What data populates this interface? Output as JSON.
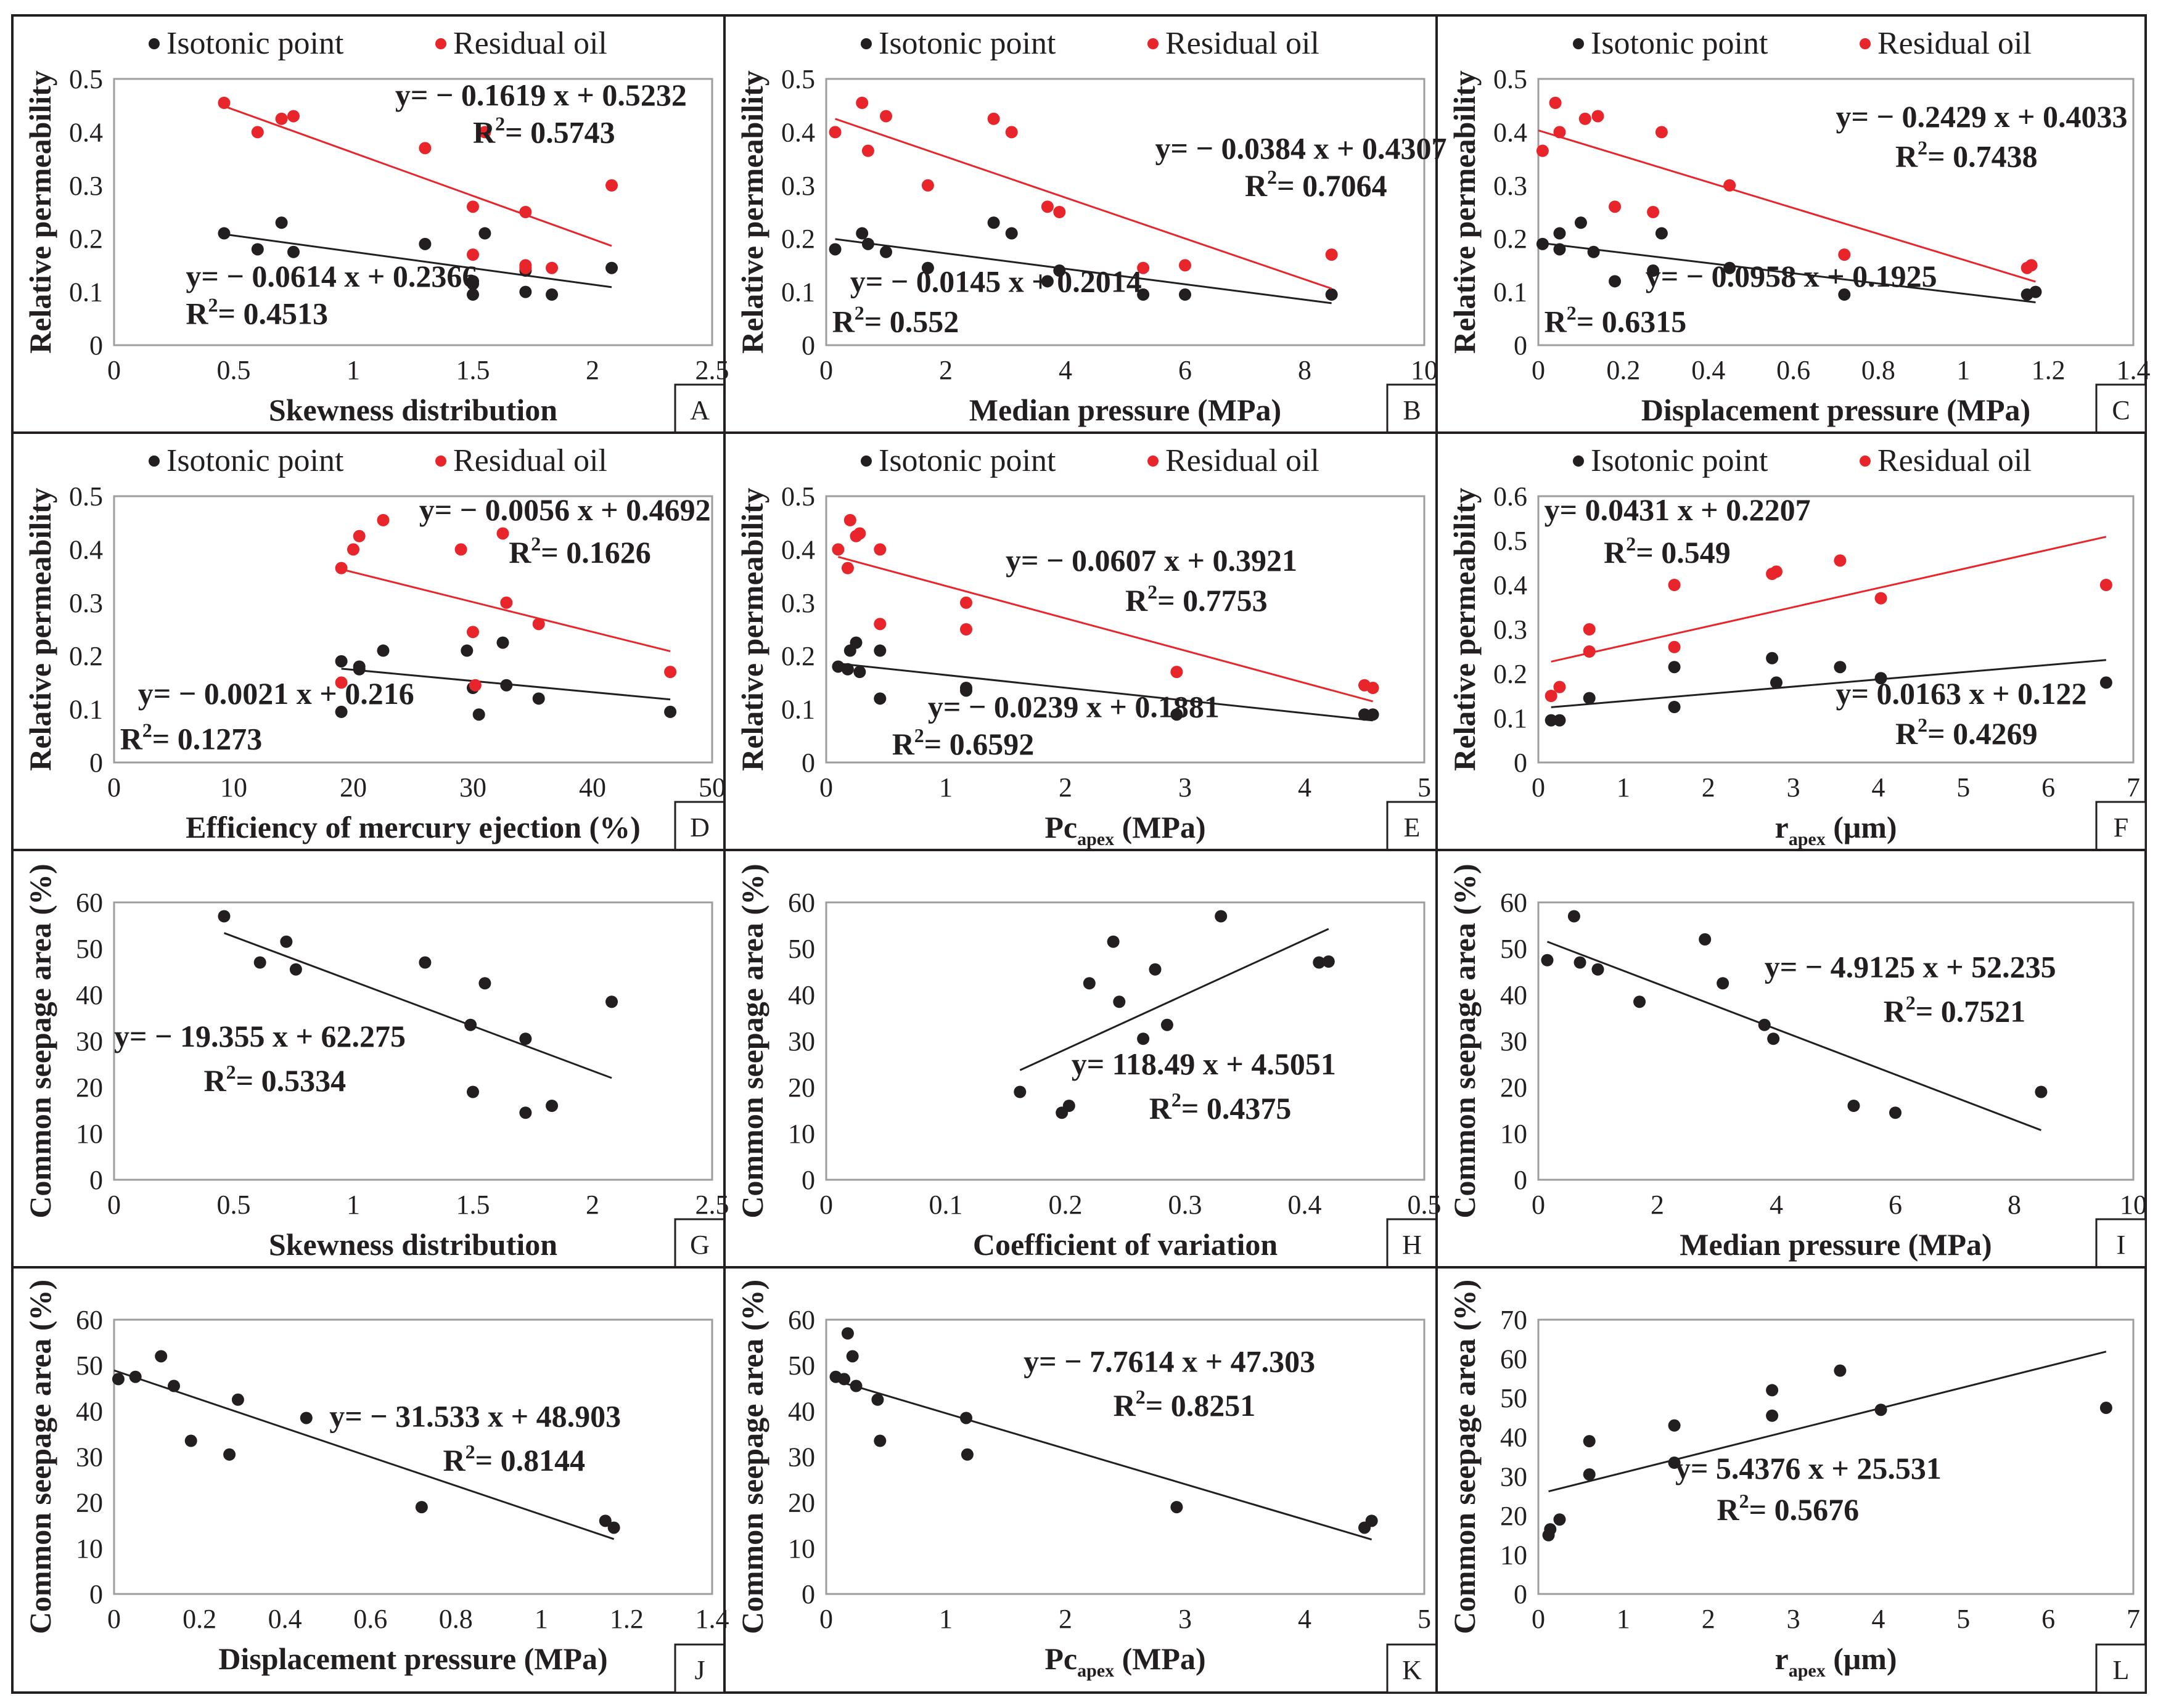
{
  "legend": {
    "isotonic": "Isotonic point",
    "residual": "Residual oil"
  },
  "colors": {
    "isotonic": "#231f20",
    "residual": "#e8252a",
    "frame": "#231f20",
    "grid": "#9d9d9d"
  },
  "chart_data": [
    {
      "id": "A",
      "type": "scatter",
      "legend": true,
      "xlabel": "Skewness distribution",
      "ylabel": "Relative permeability",
      "xlim": [
        0,
        2.5
      ],
      "ylim": [
        0,
        0.5
      ],
      "xticks": [
        "0",
        "0.5",
        "1",
        "1.5",
        "2",
        "2.5"
      ],
      "yticks": [
        "0",
        "0.1",
        "0.2",
        "0.3",
        "0.4",
        "0.5"
      ],
      "series": [
        {
          "name": "Isotonic point",
          "color": "#231f20",
          "x": [
            0.46,
            0.6,
            0.7,
            0.75,
            1.3,
            1.5,
            1.5,
            1.55,
            1.72,
            1.72,
            1.83,
            2.08,
            1.5
          ],
          "y": [
            0.21,
            0.18,
            0.23,
            0.175,
            0.19,
            0.095,
            0.12,
            0.21,
            0.1,
            0.14,
            0.095,
            0.145,
            0.115
          ],
          "fit": [
            0.4513,
            2.08
          ],
          "equation": "y= − 0.0614 x + 0.2366",
          "r2": "0.4513"
        },
        {
          "name": "Residual oil",
          "color": "#e8252a",
          "x": [
            0.46,
            0.6,
            0.7,
            0.75,
            1.3,
            1.5,
            1.5,
            1.55,
            1.72,
            1.72,
            1.72,
            1.83,
            2.08
          ],
          "y": [
            0.455,
            0.4,
            0.425,
            0.43,
            0.37,
            0.26,
            0.17,
            0.4,
            0.25,
            0.145,
            0.15,
            0.145,
            0.3
          ],
          "fit": [
            0.46,
            2.08
          ],
          "equation": "y= − 0.1619 x + 0.5232",
          "r2": "0.5743"
        }
      ]
    },
    {
      "id": "B",
      "type": "scatter",
      "legend": true,
      "xlabel": "Median pressure (MPa)",
      "ylabel": "Relative permeability",
      "xlim": [
        0,
        10
      ],
      "ylim": [
        0,
        0.5
      ],
      "xticks": [
        "0",
        "2",
        "4",
        "6",
        "8",
        "10"
      ],
      "yticks": [
        "0",
        "0.1",
        "0.2",
        "0.3",
        "0.4",
        "0.5"
      ],
      "series": [
        {
          "name": "Isotonic point",
          "color": "#231f20",
          "x": [
            0.15,
            0.6,
            0.7,
            1.0,
            1.7,
            2.8,
            3.1,
            3.7,
            3.9,
            5.3,
            6.0,
            8.45
          ],
          "y": [
            0.18,
            0.21,
            0.19,
            0.175,
            0.145,
            0.23,
            0.21,
            0.12,
            0.14,
            0.095,
            0.095,
            0.095
          ],
          "fit": [
            0.15,
            8.45
          ],
          "equation": "y= − 0.0145 x + 0.2014",
          "r2": "0.552"
        },
        {
          "name": "Residual oil",
          "color": "#e8252a",
          "x": [
            0.15,
            0.6,
            0.7,
            1.0,
            1.7,
            2.8,
            3.1,
            3.7,
            3.9,
            5.3,
            6.0,
            8.45
          ],
          "y": [
            0.4,
            0.455,
            0.365,
            0.43,
            0.3,
            0.425,
            0.4,
            0.26,
            0.25,
            0.145,
            0.15,
            0.17
          ],
          "fit": [
            0.15,
            8.45
          ],
          "equation": "y= − 0.0384 x + 0.4307",
          "r2": "0.7064"
        }
      ]
    },
    {
      "id": "C",
      "type": "scatter",
      "legend": true,
      "xlabel": "Displacement pressure (MPa)",
      "ylabel": "Relative permeability",
      "xlim": [
        0,
        1.4
      ],
      "ylim": [
        0,
        0.5
      ],
      "xticks": [
        "0",
        "0.2",
        "0.4",
        "0.6",
        "0.8",
        "1",
        "1.2",
        "1.4"
      ],
      "yticks": [
        "0",
        "0.1",
        "0.2",
        "0.3",
        "0.4",
        "0.5"
      ],
      "series": [
        {
          "name": "Isotonic point",
          "color": "#231f20",
          "x": [
            0.01,
            0.05,
            0.05,
            0.1,
            0.13,
            0.18,
            0.27,
            0.29,
            0.45,
            0.72,
            1.15,
            1.17
          ],
          "y": [
            0.19,
            0.21,
            0.18,
            0.23,
            0.175,
            0.12,
            0.14,
            0.21,
            0.145,
            0.095,
            0.095,
            0.1
          ],
          "fit": [
            0.0,
            1.17
          ],
          "equation": "y= − 0.0958 x + 0.1925",
          "r2": "0.6315"
        },
        {
          "name": "Residual oil",
          "color": "#e8252a",
          "x": [
            0.01,
            0.04,
            0.05,
            0.11,
            0.14,
            0.18,
            0.27,
            0.29,
            0.45,
            0.72,
            1.15,
            1.16
          ],
          "y": [
            0.365,
            0.455,
            0.4,
            0.425,
            0.43,
            0.26,
            0.25,
            0.4,
            0.3,
            0.17,
            0.145,
            0.15
          ],
          "fit": [
            0.0,
            1.17
          ],
          "equation": "y= − 0.2429 x + 0.4033",
          "r2": "0.7438"
        }
      ]
    },
    {
      "id": "D",
      "type": "scatter",
      "legend": true,
      "xlabel": "Efficiency of mercury ejection (%)",
      "ylabel": "Relative permeability",
      "xlim": [
        0,
        50
      ],
      "ylim": [
        0,
        0.5
      ],
      "xticks": [
        "0",
        "10",
        "20",
        "30",
        "40",
        "50"
      ],
      "yticks": [
        "0",
        "0.1",
        "0.2",
        "0.3",
        "0.4",
        "0.5"
      ],
      "series": [
        {
          "name": "Isotonic point",
          "color": "#231f20",
          "x": [
            19.0,
            19.0,
            20.5,
            20.5,
            22.5,
            29.5,
            30.0,
            30.5,
            32.5,
            32.8,
            35.5,
            46.5
          ],
          "y": [
            0.19,
            0.095,
            0.18,
            0.175,
            0.21,
            0.21,
            0.14,
            0.09,
            0.225,
            0.145,
            0.12,
            0.095
          ],
          "fit": [
            19.0,
            46.5
          ],
          "equation": "y= − 0.0021 x + 0.216",
          "r2": "0.1273"
        },
        {
          "name": "Residual oil",
          "color": "#e8252a",
          "x": [
            19.0,
            19.0,
            20.0,
            20.5,
            22.5,
            29.0,
            30.0,
            30.2,
            32.5,
            32.8,
            35.5,
            46.5
          ],
          "y": [
            0.365,
            0.15,
            0.4,
            0.425,
            0.455,
            0.4,
            0.245,
            0.145,
            0.43,
            0.3,
            0.26,
            0.17
          ],
          "fit": [
            19.0,
            46.5
          ],
          "equation": "y= − 0.0056 x + 0.4692",
          "r2": "0.1626"
        }
      ]
    },
    {
      "id": "E",
      "type": "scatter",
      "legend": true,
      "xlabel": "Pc",
      "xlabel_sub": "apex",
      "xlabel_tail": " (MPa)",
      "ylabel": "Relative permeability",
      "xlim": [
        0,
        5
      ],
      "ylim": [
        0,
        0.5
      ],
      "xticks": [
        "0",
        "1",
        "2",
        "3",
        "4",
        "5"
      ],
      "yticks": [
        "0",
        "0.1",
        "0.2",
        "0.3",
        "0.4",
        "0.5"
      ],
      "series": [
        {
          "name": "Isotonic point",
          "color": "#231f20",
          "x": [
            0.1,
            0.18,
            0.2,
            0.25,
            0.28,
            0.45,
            0.45,
            1.17,
            1.17,
            2.93,
            4.5,
            4.57
          ],
          "y": [
            0.18,
            0.175,
            0.21,
            0.225,
            0.17,
            0.21,
            0.12,
            0.14,
            0.135,
            0.09,
            0.09,
            0.09
          ],
          "fit": [
            0.1,
            4.57
          ],
          "equation": "y= − 0.0239 x + 0.1881",
          "r2": "0.6592"
        },
        {
          "name": "Residual oil",
          "color": "#e8252a",
          "x": [
            0.1,
            0.18,
            0.2,
            0.25,
            0.28,
            0.45,
            0.45,
            1.17,
            1.17,
            2.93,
            4.5,
            4.57
          ],
          "y": [
            0.4,
            0.365,
            0.455,
            0.425,
            0.43,
            0.4,
            0.26,
            0.3,
            0.25,
            0.17,
            0.145,
            0.14
          ],
          "fit": [
            0.1,
            4.57
          ],
          "equation": "y= − 0.0607 x + 0.3921",
          "r2": "0.7753"
        }
      ]
    },
    {
      "id": "F",
      "type": "scatter",
      "legend": true,
      "xlabel": "r",
      "xlabel_sub": "apex",
      "xlabel_tail": " (μm)",
      "ylabel": "Relative permeability",
      "xlim": [
        0,
        7
      ],
      "ylim": [
        0,
        0.6
      ],
      "xticks": [
        "0",
        "1",
        "2",
        "3",
        "4",
        "5",
        "6",
        "7"
      ],
      "yticks": [
        "0",
        "0.1",
        "0.2",
        "0.3",
        "0.4",
        "0.5",
        "0.6"
      ],
      "series": [
        {
          "name": "Isotonic point",
          "color": "#231f20",
          "x": [
            0.15,
            0.25,
            0.6,
            1.6,
            1.6,
            2.75,
            2.8,
            3.55,
            4.03,
            6.68
          ],
          "y": [
            0.095,
            0.095,
            0.145,
            0.215,
            0.125,
            0.235,
            0.18,
            0.215,
            0.19,
            0.18
          ],
          "fit": [
            0.15,
            6.68
          ],
          "equation": "y= 0.0163 x + 0.122",
          "r2": "0.4269"
        },
        {
          "name": "Residual oil",
          "color": "#e8252a",
          "x": [
            0.15,
            0.25,
            0.6,
            0.6,
            1.6,
            1.6,
            2.75,
            2.8,
            3.55,
            4.03,
            6.68
          ],
          "y": [
            0.15,
            0.17,
            0.3,
            0.25,
            0.4,
            0.26,
            0.425,
            0.43,
            0.455,
            0.37,
            0.4
          ],
          "fit": [
            0.15,
            6.68
          ],
          "equation": "y= 0.0431 x + 0.2207",
          "r2": "0.549"
        }
      ]
    },
    {
      "id": "G",
      "type": "scatter",
      "legend": false,
      "xlabel": "Skewness distribution",
      "ylabel": "Common seepage area (%)",
      "xlim": [
        0,
        2.5
      ],
      "ylim": [
        0,
        60
      ],
      "xticks": [
        "0",
        "0.5",
        "1",
        "1.5",
        "2",
        "2.5"
      ],
      "yticks": [
        "0",
        "10",
        "20",
        "30",
        "40",
        "50",
        "60"
      ],
      "series": [
        {
          "name": "Common seepage area",
          "color": "#231f20",
          "x": [
            0.46,
            0.61,
            0.72,
            0.76,
            1.3,
            1.49,
            1.5,
            1.55,
            1.72,
            1.72,
            1.83,
            2.08
          ],
          "y": [
            57,
            47,
            51.5,
            45.5,
            47,
            33.5,
            19,
            42.5,
            30.5,
            14.5,
            16,
            38.5
          ],
          "fit": [
            0.46,
            2.08
          ],
          "equation": "y= − 19.355 x + 62.275",
          "r2": "0.5334"
        }
      ]
    },
    {
      "id": "H",
      "type": "scatter",
      "legend": false,
      "xlabel": "Coefficient of variation",
      "ylabel": "Common seepage area (%)",
      "xlim": [
        0,
        0.5
      ],
      "ylim": [
        0,
        60
      ],
      "xticks": [
        "0",
        "0.1",
        "0.2",
        "0.3",
        "0.4",
        "0.5"
      ],
      "yticks": [
        "0",
        "10",
        "20",
        "30",
        "40",
        "50",
        "60"
      ],
      "series": [
        {
          "name": "Common seepage area",
          "color": "#231f20",
          "x": [
            0.162,
            0.197,
            0.203,
            0.22,
            0.24,
            0.245,
            0.265,
            0.275,
            0.285,
            0.33,
            0.412,
            0.42
          ],
          "y": [
            19,
            14.5,
            16,
            42.5,
            51.5,
            38.5,
            30.5,
            45.5,
            33.5,
            57,
            47,
            47.2
          ],
          "fit": [
            0.162,
            0.42
          ],
          "equation": "y= 118.49 x + 4.5051",
          "r2": "0.4375"
        }
      ]
    },
    {
      "id": "I",
      "type": "scatter",
      "legend": false,
      "xlabel": "Median pressure (MPa)",
      "ylabel": "Common seepage area (%)",
      "xlim": [
        0,
        10
      ],
      "ylim": [
        0,
        60
      ],
      "xticks": [
        "0",
        "2",
        "4",
        "6",
        "8",
        "10"
      ],
      "yticks": [
        "0",
        "10",
        "20",
        "30",
        "40",
        "50",
        "60"
      ],
      "series": [
        {
          "name": "Common seepage area",
          "color": "#231f20",
          "x": [
            0.15,
            0.6,
            0.7,
            1.0,
            1.7,
            2.8,
            3.1,
            3.8,
            3.95,
            5.3,
            6.0,
            8.45
          ],
          "y": [
            47.5,
            57,
            47,
            45.5,
            38.5,
            52,
            42.5,
            33.5,
            30.5,
            16,
            14.5,
            19
          ],
          "fit": [
            0.15,
            8.45
          ],
          "equation": "y= − 4.9125 x + 52.235",
          "r2": "0.7521"
        }
      ]
    },
    {
      "id": "J",
      "type": "scatter",
      "legend": false,
      "xlabel": "Displacement pressure (MPa)",
      "ylabel": "Common seepage area (%)",
      "xlim": [
        0,
        1.4
      ],
      "ylim": [
        0,
        60
      ],
      "xticks": [
        "0",
        "0.2",
        "0.4",
        "0.6",
        "0.8",
        "1",
        "1.2",
        "1.4"
      ],
      "yticks": [
        "0",
        "10",
        "20",
        "30",
        "40",
        "50",
        "60"
      ],
      "series": [
        {
          "name": "Common seepage area",
          "color": "#231f20",
          "x": [
            0.01,
            0.05,
            0.11,
            0.14,
            0.18,
            0.27,
            0.29,
            0.45,
            0.72,
            1.15,
            1.17
          ],
          "y": [
            47,
            47.5,
            52,
            45.5,
            33.5,
            30.5,
            42.5,
            38.5,
            19,
            16,
            14.5
          ],
          "fit": [
            0.0,
            1.17
          ],
          "equation": "y= − 31.533 x + 48.903",
          "r2": "0.8144"
        }
      ]
    },
    {
      "id": "K",
      "type": "scatter",
      "legend": false,
      "xlabel": "Pc",
      "xlabel_sub": "apex",
      "xlabel_tail": " (MPa)",
      "ylabel": "Common seepage area (%)",
      "xlim": [
        0,
        5
      ],
      "ylim": [
        0,
        60
      ],
      "xticks": [
        "0",
        "1",
        "2",
        "3",
        "4",
        "5"
      ],
      "yticks": [
        "0",
        "10",
        "20",
        "30",
        "40",
        "50",
        "60"
      ],
      "series": [
        {
          "name": "Common seepage area",
          "color": "#231f20",
          "x": [
            0.08,
            0.15,
            0.18,
            0.22,
            0.25,
            0.43,
            0.45,
            1.17,
            1.18,
            2.93,
            4.5,
            4.56
          ],
          "y": [
            47.5,
            47,
            57,
            52,
            45.5,
            42.5,
            33.5,
            38.5,
            30.5,
            19,
            14.5,
            16
          ],
          "fit": [
            0.08,
            4.56
          ],
          "equation": "y= − 7.7614 x + 47.303",
          "r2": "0.8251"
        }
      ]
    },
    {
      "id": "L",
      "type": "scatter",
      "legend": false,
      "xlabel": "r",
      "xlabel_sub": "apex",
      "xlabel_tail": " (μm)",
      "ylabel": "Common seepage area (%)",
      "xlim": [
        0,
        7
      ],
      "ylim": [
        0,
        70
      ],
      "xticks": [
        "0",
        "1",
        "2",
        "3",
        "4",
        "5",
        "6",
        "7"
      ],
      "yticks": [
        "0",
        "10",
        "20",
        "30",
        "40",
        "50",
        "60",
        "70"
      ],
      "series": [
        {
          "name": "Common seepage area",
          "color": "#231f20",
          "x": [
            0.12,
            0.14,
            0.25,
            0.6,
            0.6,
            1.6,
            1.6,
            2.75,
            2.75,
            3.55,
            4.03,
            6.68
          ],
          "y": [
            15,
            16.5,
            19,
            30.5,
            39,
            43,
            33.5,
            52,
            45.5,
            57,
            47,
            47.5
          ],
          "fit": [
            0.12,
            6.68
          ],
          "equation": "y= 5.4376 x + 25.531",
          "r2": "0.5676"
        }
      ]
    }
  ]
}
